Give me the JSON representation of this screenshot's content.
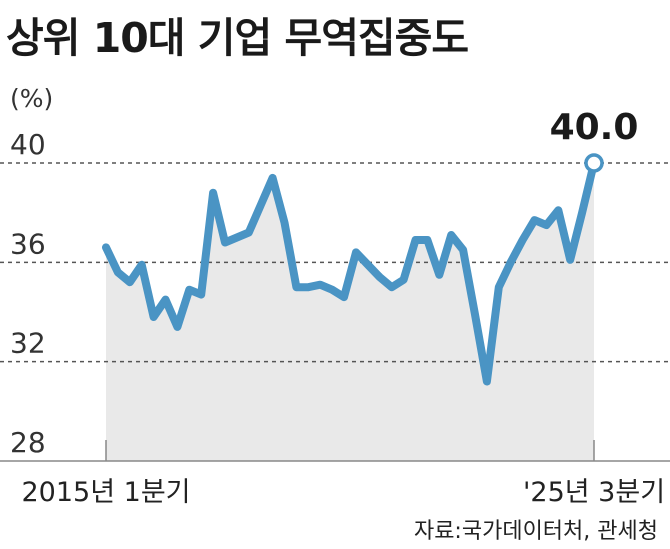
{
  "title": "상위 10대 기업 무역집중도",
  "unit": "(%)",
  "source": "자료:국가데이터처, 관세청",
  "chart_data": {
    "type": "area",
    "title": "상위 10대 기업 무역집중도",
    "ylabel": "(%)",
    "ylim": [
      28,
      40
    ],
    "yticks": [
      "28",
      "32",
      "36",
      "40"
    ],
    "xtick_labels": [
      "2015년 1분기",
      "'25년 3분기"
    ],
    "grid": "horizontal dashed",
    "end_label": "40.0",
    "colors": {
      "line": "#4a94c4",
      "fill": "#e9e9e9",
      "grid": "#555555"
    },
    "series": [
      {
        "values": [
          36.6,
          35.6,
          35.2,
          35.9,
          33.8,
          34.5,
          33.4,
          34.9,
          34.7,
          38.8,
          36.8,
          37.0,
          37.2,
          38.3,
          39.4,
          37.6,
          35.0,
          35.0,
          35.1,
          34.9,
          34.6,
          36.4,
          35.9,
          35.4,
          35.0,
          35.3,
          36.9,
          36.9,
          35.5,
          37.1,
          36.5,
          33.9,
          31.2,
          35.0,
          36.0,
          36.9,
          37.7,
          37.5,
          38.1,
          36.1,
          38.0,
          40.0
        ]
      }
    ]
  }
}
